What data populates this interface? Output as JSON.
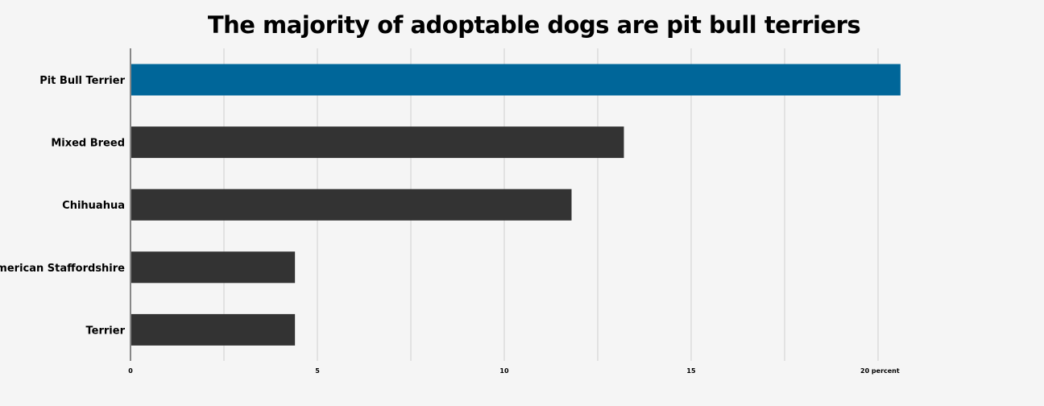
{
  "chart_data": {
    "type": "bar",
    "orientation": "horizontal",
    "title": "The majority of adoptable dogs are pit bull terriers",
    "categories": [
      "Pit Bull Terrier",
      "Mixed Breed",
      "Chihuahua",
      "American Staffordshire",
      "Terrier"
    ],
    "values": [
      20.6,
      13.2,
      11.8,
      4.4,
      4.4
    ],
    "xlabel": "",
    "ylabel": "",
    "xlim": [
      0,
      22.5
    ],
    "x_ticks": [
      0,
      5,
      10,
      15,
      20
    ],
    "x_tick_labels": [
      "0",
      "5",
      "10",
      "15",
      "20 percent"
    ],
    "minor_gridlines": [
      2.5,
      7.5,
      12.5,
      17.5,
      20
    ],
    "grid": true,
    "colors": {
      "highlight": "#006699",
      "default": "#333333",
      "grid": "#d0d0d0",
      "axis": "#888888",
      "background": "#f5f5f5"
    },
    "highlight_index": 0
  }
}
